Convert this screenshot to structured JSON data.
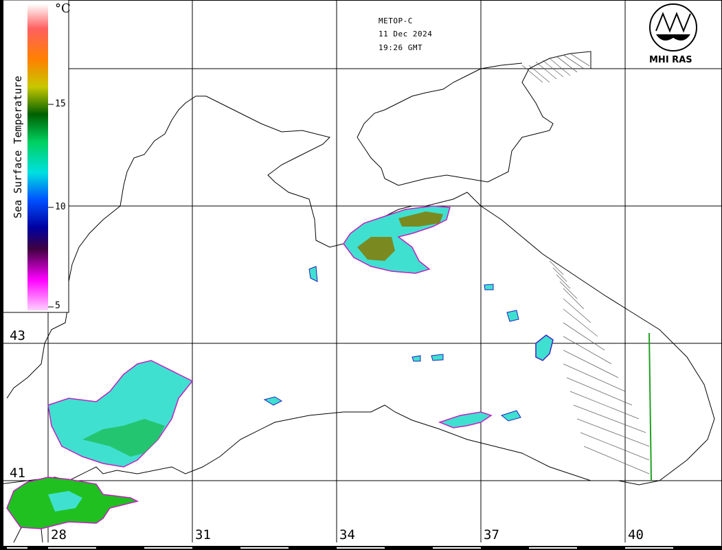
{
  "header": {
    "satellite": "METOP-C",
    "date": "11 Dec 2024",
    "time": "19:26 GMT"
  },
  "logo": {
    "text": "MHI RAS",
    "icon": "mhi-ras-logo-icon"
  },
  "colorbar": {
    "title": "Sea Surface Temperature",
    "unit": "°C",
    "ticks": [
      "15",
      "10",
      "5"
    ],
    "colors": [
      "#ffffff",
      "#ff2020",
      "#ff8000",
      "#c8c800",
      "#008000",
      "#00d060",
      "#00e0e0",
      "#0050ff",
      "#0000a0",
      "#500050",
      "#ff00ff",
      "#ffc8ff"
    ]
  },
  "axes": {
    "longitudes": [
      "28",
      "31",
      "34",
      "37",
      "40"
    ],
    "latitudes": [
      "43",
      "41"
    ]
  },
  "colors": {
    "coastline": "#000000",
    "grid": "#000000",
    "warm": "#7a8a20",
    "cyan": "#40e0d0",
    "green": "#20c020",
    "magenta": "#c020c0"
  }
}
